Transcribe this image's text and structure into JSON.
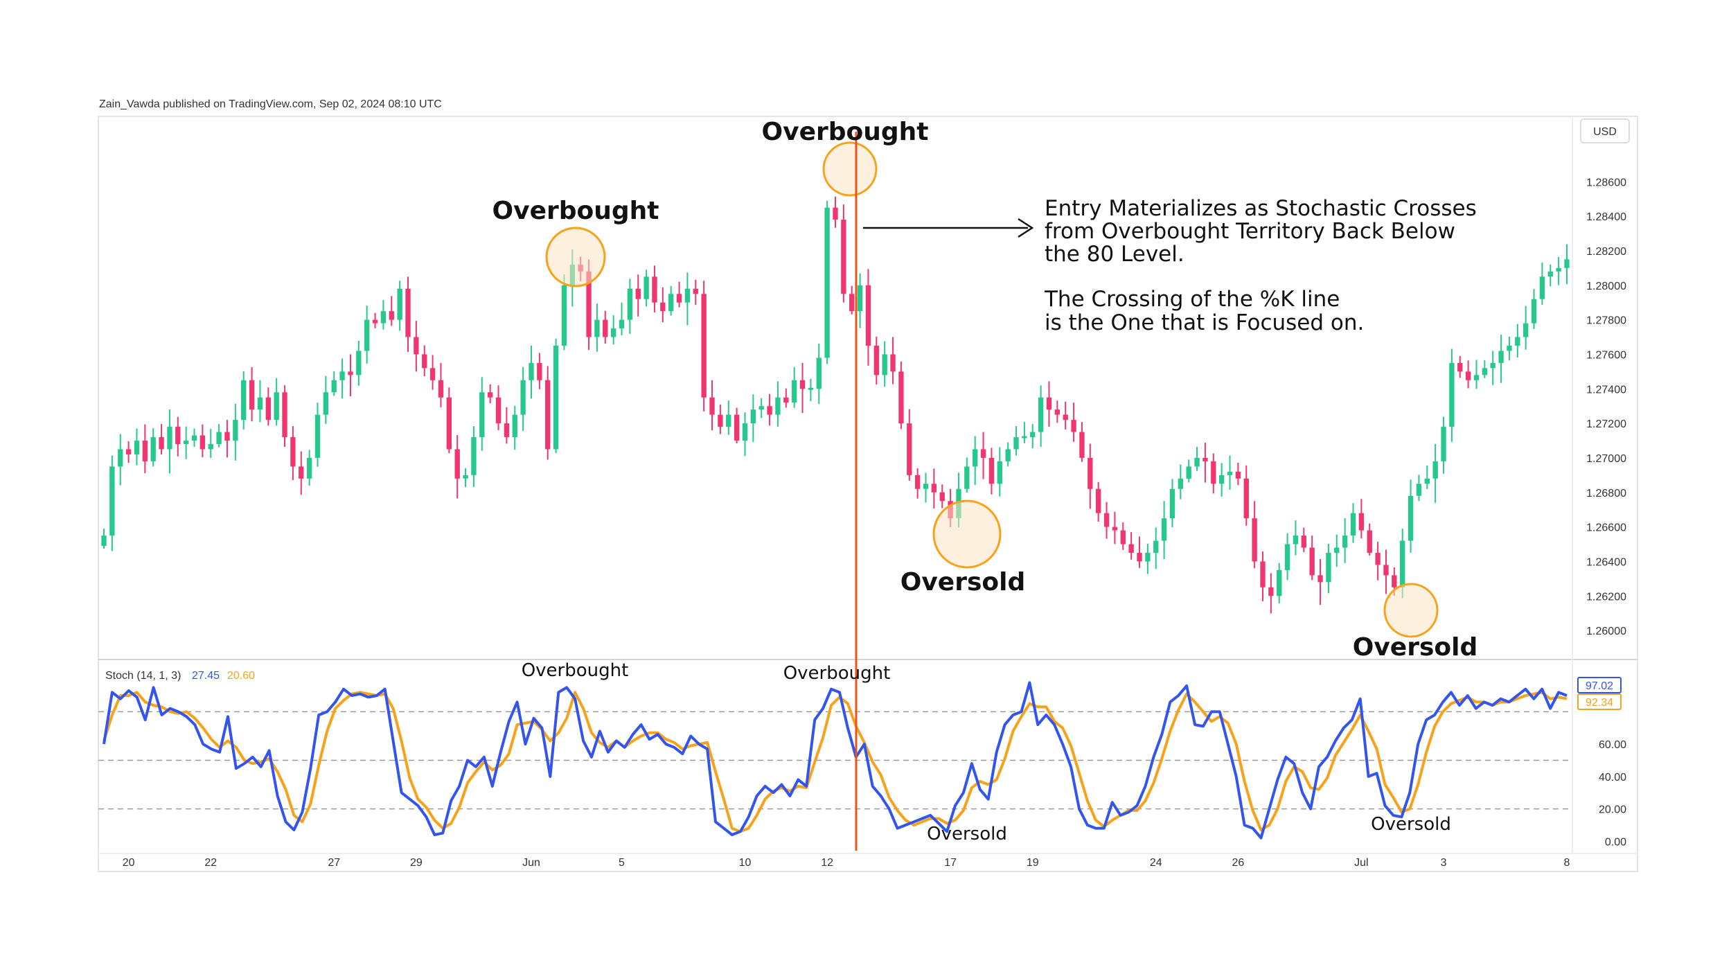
{
  "header": {
    "published_line": "Zain_Vawda published on TradingView.com, Sep 02, 2024 08:10 UTC",
    "currency_label": "USD"
  },
  "annotations": {
    "overbought_1": "Overbought",
    "overbought_2": "Overbought",
    "oversold_1": "Oversold",
    "oversold_2": "Oversold",
    "stoch_overbought_1": "Overbought",
    "stoch_overbought_2": "Overbought",
    "stoch_oversold_1": "Oversold",
    "stoch_oversold_2": "Oversold",
    "note_line_1": "Entry Materializes as Stochastic Crosses",
    "note_line_2": "from Overbought Territory Back Below",
    "note_line_3": "the 80 Level.",
    "note_line_4": "The Crossing of the %K line",
    "note_line_5": "is the One that is Focused on."
  },
  "stoch_legend": {
    "name": "Stoch (14, 1, 3)",
    "k_value": "27.45",
    "d_value": "20.60",
    "k_badge": "97.02",
    "d_badge": "92.34"
  },
  "colors": {
    "up": "#26c98b",
    "down": "#f0366f",
    "k_line": "#3355ee",
    "d_line": "#f7a21b",
    "highlight_fill": "#fde3c3",
    "highlight_stroke": "#f7a21b",
    "entry_line": "#e8541a"
  },
  "chart_data": [
    {
      "type": "candlestick",
      "title": "",
      "price_ticks": [
        "1.26000",
        "1.26200",
        "1.26400",
        "1.26600",
        "1.26800",
        "1.27000",
        "1.27200",
        "1.27400",
        "1.27600",
        "1.27800",
        "1.28000",
        "1.28200",
        "1.28400",
        "1.28600"
      ],
      "ylim": [
        1.2588,
        1.2885
      ],
      "date_ticks": [
        {
          "label": "20",
          "index": 3
        },
        {
          "label": "22",
          "index": 13
        },
        {
          "label": "27",
          "index": 28
        },
        {
          "label": "29",
          "index": 38
        },
        {
          "label": "Jun",
          "index": 52
        },
        {
          "label": "5",
          "index": 63
        },
        {
          "label": "10",
          "index": 78
        },
        {
          "label": "12",
          "index": 88
        },
        {
          "label": "17",
          "index": 103
        },
        {
          "label": "19",
          "index": 113
        },
        {
          "label": "24",
          "index": 128
        },
        {
          "label": "26",
          "index": 138
        },
        {
          "label": "Jul",
          "index": 153
        },
        {
          "label": "3",
          "index": 163
        },
        {
          "label": "8",
          "index": 178
        }
      ],
      "close_path": [
        1.2655,
        1.2695,
        1.2705,
        1.2702,
        1.271,
        1.2698,
        1.2712,
        1.2705,
        1.2718,
        1.2708,
        1.271,
        1.2713,
        1.2705,
        1.2708,
        1.2715,
        1.271,
        1.2722,
        1.2745,
        1.2728,
        1.2735,
        1.2722,
        1.2738,
        1.2712,
        1.2695,
        1.2688,
        1.27,
        1.2725,
        1.2738,
        1.2745,
        1.275,
        1.2748,
        1.2762,
        1.278,
        1.2778,
        1.2785,
        1.278,
        1.2798,
        1.277,
        1.276,
        1.2752,
        1.2745,
        1.2735,
        1.2705,
        1.2688,
        1.269,
        1.2712,
        1.2738,
        1.2735,
        1.272,
        1.2712,
        1.2725,
        1.2745,
        1.2755,
        1.2745,
        1.2705,
        1.2765,
        1.28,
        1.2812,
        1.2808,
        1.277,
        1.278,
        1.277,
        1.2775,
        1.278,
        1.2798,
        1.2792,
        1.2805,
        1.279,
        1.2785,
        1.2795,
        1.279,
        1.2798,
        1.2795,
        1.2735,
        1.2725,
        1.2718,
        1.2725,
        1.271,
        1.272,
        1.2728,
        1.273,
        1.2725,
        1.2735,
        1.2732,
        1.2745,
        1.274,
        1.274,
        1.2758,
        1.2845,
        1.2838,
        1.2795,
        1.2785,
        1.28,
        1.2765,
        1.2748,
        1.276,
        1.275,
        1.272,
        1.269,
        1.2682,
        1.2685,
        1.268,
        1.2675,
        1.2665,
        1.2682,
        1.2695,
        1.2705,
        1.27,
        1.2685,
        1.2698,
        1.2705,
        1.2712,
        1.2712,
        1.2715,
        1.2735,
        1.2728,
        1.2725,
        1.2722,
        1.2715,
        1.27,
        1.2682,
        1.2668,
        1.266,
        1.2658,
        1.265,
        1.2645,
        1.264,
        1.2645,
        1.2652,
        1.2665,
        1.2682,
        1.2688,
        1.2695,
        1.27,
        1.2698,
        1.2685,
        1.269,
        1.2692,
        1.2688,
        1.2665,
        1.264,
        1.2625,
        1.262,
        1.2635,
        1.265,
        1.2655,
        1.2648,
        1.2632,
        1.2628,
        1.2645,
        1.2648,
        1.2655,
        1.2668,
        1.2658,
        1.2645,
        1.2638,
        1.2632,
        1.2625,
        1.2652,
        1.2678,
        1.2685,
        1.2688,
        1.2698,
        1.2718,
        1.2755,
        1.275,
        1.2745,
        1.2748,
        1.2752,
        1.2755,
        1.2762,
        1.2765,
        1.277,
        1.2778,
        1.2792,
        1.2805,
        1.2808,
        1.281,
        1.2815
      ],
      "series": [
        {
          "name": "",
          "values": []
        }
      ]
    },
    {
      "type": "line",
      "title": "Stoch (14, 1, 3)",
      "value_ticks": [
        "0.00",
        "20.00",
        "40.00",
        "60.00"
      ],
      "reference_lines": [
        20,
        50,
        80
      ],
      "ylim": [
        -5,
        108
      ],
      "k_path": [
        60,
        92,
        88,
        93,
        89,
        75,
        95,
        78,
        82,
        80,
        77,
        72,
        60,
        57,
        55,
        77,
        45,
        48,
        52,
        46,
        56,
        28,
        12,
        7,
        18,
        45,
        78,
        80,
        86,
        94,
        90,
        91,
        89,
        90,
        94,
        62,
        30,
        26,
        22,
        15,
        4,
        5,
        25,
        34,
        50,
        46,
        52,
        34,
        55,
        74,
        86,
        60,
        76,
        70,
        40,
        92,
        95,
        88,
        62,
        52,
        68,
        55,
        62,
        58,
        66,
        72,
        63,
        66,
        60,
        58,
        54,
        65,
        60,
        57,
        12,
        8,
        4,
        6,
        15,
        28,
        34,
        30,
        35,
        28,
        38,
        34,
        75,
        82,
        94,
        92,
        70,
        52,
        60,
        34,
        28,
        20,
        8,
        10,
        12,
        14,
        16,
        11,
        6,
        22,
        30,
        48,
        32,
        26,
        55,
        72,
        78,
        80,
        98,
        72,
        78,
        72,
        60,
        46,
        20,
        10,
        8,
        8,
        24,
        16,
        18,
        22,
        34,
        52,
        66,
        86,
        90,
        96,
        72,
        71,
        80,
        80,
        60,
        40,
        10,
        8,
        2,
        20,
        38,
        52,
        48,
        30,
        20,
        46,
        52,
        62,
        70,
        75,
        88,
        40,
        42,
        22,
        16,
        15,
        30,
        60,
        75,
        78,
        86,
        92,
        84,
        90,
        82,
        86,
        84,
        88,
        86,
        90,
        94,
        88,
        94,
        82,
        92,
        90
      ],
      "d_path": [
        62,
        78,
        90,
        90,
        92,
        86,
        84,
        83,
        80,
        79,
        80,
        76,
        70,
        63,
        58,
        62,
        58,
        50,
        48,
        49,
        51,
        43,
        32,
        16,
        12,
        23,
        47,
        68,
        82,
        87,
        91,
        92,
        91,
        90,
        91,
        82,
        62,
        39,
        26,
        21,
        13,
        8,
        11,
        21,
        36,
        43,
        49,
        44,
        47,
        54,
        72,
        73,
        74,
        69,
        62,
        67,
        76,
        92,
        82,
        67,
        61,
        58,
        62,
        58,
        62,
        65,
        67,
        67,
        63,
        61,
        57,
        59,
        60,
        61,
        43,
        26,
        8,
        6,
        8,
        16,
        26,
        31,
        33,
        31,
        34,
        33,
        49,
        64,
        84,
        89,
        85,
        71,
        61,
        49,
        41,
        27,
        19,
        13,
        10,
        12,
        14,
        14,
        11,
        13,
        19,
        33,
        37,
        35,
        38,
        51,
        68,
        77,
        85,
        83,
        83,
        74,
        70,
        59,
        42,
        25,
        13,
        9,
        13,
        16,
        19,
        19,
        25,
        36,
        51,
        68,
        81,
        91,
        86,
        80,
        74,
        77,
        73,
        60,
        37,
        19,
        7,
        10,
        20,
        37,
        46,
        43,
        33,
        32,
        39,
        53,
        61,
        69,
        78,
        68,
        57,
        35,
        27,
        18,
        20,
        35,
        55,
        71,
        80,
        85,
        87,
        89,
        86,
        86,
        84,
        86,
        86,
        88,
        90,
        91,
        92,
        88,
        89,
        88
      ],
      "series": [
        {
          "name": "27.45",
          "values": []
        },
        {
          "name": "20.60",
          "values": []
        }
      ]
    }
  ]
}
